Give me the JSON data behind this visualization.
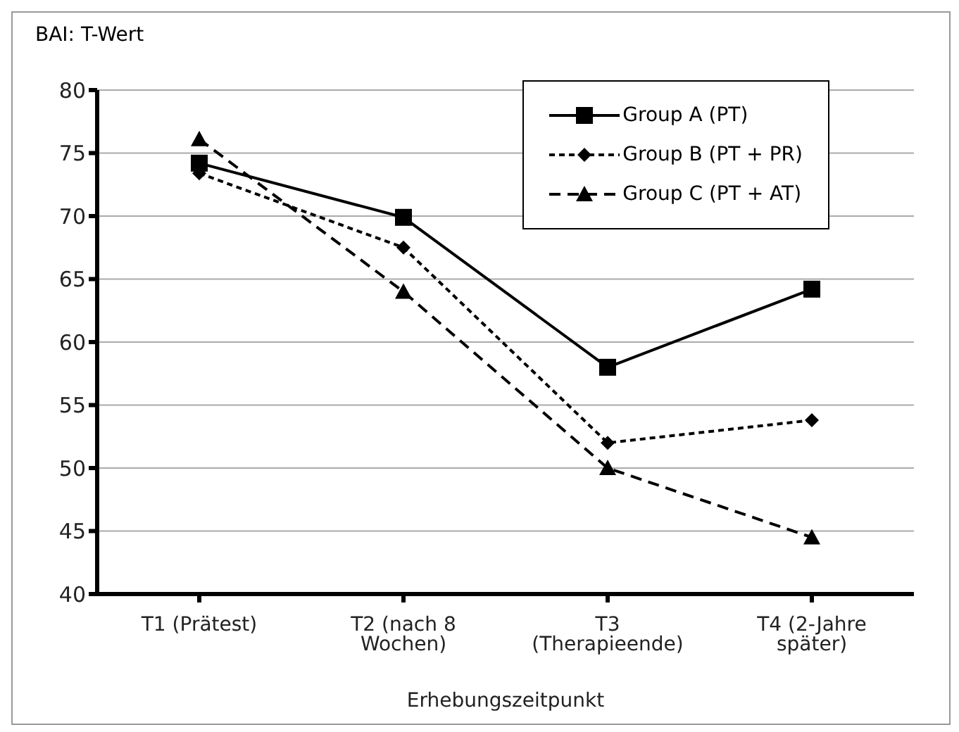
{
  "chart_data": {
    "type": "line",
    "ylabel": "BAI: T-Wert",
    "xlabel": "Erhebungszeitpunkt",
    "categories": [
      "T1 (Prätest)",
      "T2 (nach 8 Wochen)",
      "T3 (Therapieende)",
      "T4 (2-Jahre später)"
    ],
    "series": [
      {
        "name": "Group A (PT)",
        "color": "#000000",
        "marker": "square",
        "line_style": "solid",
        "values": [
          74.2,
          69.9,
          58,
          64.2
        ]
      },
      {
        "name": "Group B (PT + PR)",
        "color": "#000000",
        "marker": "diamond",
        "line_style": "dotted",
        "values": [
          73.4,
          67.5,
          52,
          53.8
        ]
      },
      {
        "name": "Group C (PT + AT)",
        "color": "#000000",
        "marker": "triangle",
        "line_style": "dashed",
        "values": [
          76.1,
          64,
          50,
          44.5
        ]
      }
    ],
    "ylim": [
      40,
      80
    ],
    "yticks": [
      40,
      45,
      50,
      55,
      60,
      65,
      70,
      75,
      80
    ],
    "grid": "y",
    "legend": "top right"
  }
}
